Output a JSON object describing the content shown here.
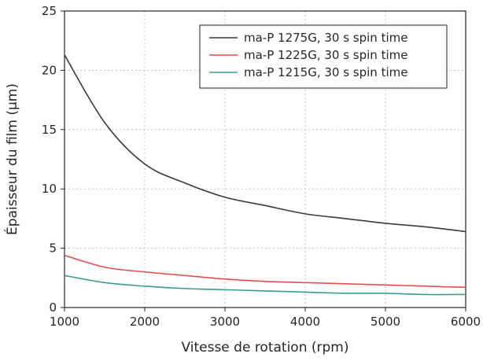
{
  "chart_data": {
    "type": "line",
    "xlabel": "Vitesse de rotation (rpm)",
    "ylabel": "Épaisseur du film (µm)",
    "xlim": [
      1000,
      6000
    ],
    "ylim": [
      0,
      25
    ],
    "xticks": [
      1000,
      2000,
      3000,
      4000,
      5000,
      6000
    ],
    "yticks": [
      0,
      5,
      10,
      15,
      20,
      25
    ],
    "grid": true,
    "grid_style": "dotted",
    "legend_position": "top-right",
    "x": [
      1000,
      1500,
      2000,
      2500,
      3000,
      3500,
      4000,
      4500,
      5000,
      5500,
      6000
    ],
    "series": [
      {
        "name": "ma-P 1275G, 30 s spin time",
        "color": "#3a3a3a",
        "values": [
          21.3,
          15.6,
          12.1,
          10.5,
          9.3,
          8.6,
          7.9,
          7.5,
          7.1,
          6.8,
          6.4
        ]
      },
      {
        "name": "ma-P 1225G, 30 s spin time",
        "color": "#e84c4c",
        "values": [
          4.4,
          3.4,
          3.0,
          2.7,
          2.4,
          2.2,
          2.1,
          2.0,
          1.9,
          1.8,
          1.7
        ]
      },
      {
        "name": "ma-P 1215G, 30 s spin time",
        "color": "#3a9a95",
        "values": [
          2.7,
          2.1,
          1.8,
          1.6,
          1.5,
          1.4,
          1.3,
          1.2,
          1.2,
          1.1,
          1.1
        ]
      }
    ]
  }
}
